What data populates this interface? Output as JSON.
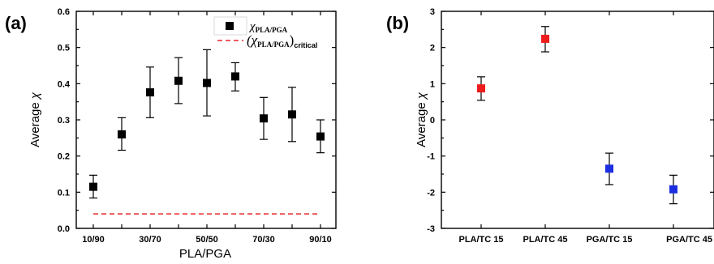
{
  "chart_data": [
    {
      "panel_label": "(a)",
      "type": "scatter",
      "xlabel": "PLA/PGA",
      "ylabel_text": "Average",
      "ylabel_symbol": "χ",
      "ylim": [
        0,
        0.6
      ],
      "yticks": [
        "0.0",
        "0.1",
        "0.2",
        "0.3",
        "0.4",
        "0.5",
        "0.6"
      ],
      "xticks": [
        "10/90",
        "30/70",
        "50/50",
        "70/30",
        "90/10"
      ],
      "grid": false,
      "legend": {
        "placement": "top-right",
        "series_symbol": "χ",
        "series_sub": "PLA/PGA",
        "critical_prefix": "(χ",
        "critical_sub": "PLA/PGA",
        "critical_suffix": ")",
        "critical_label": "critical"
      },
      "series": [
        {
          "marker": "square",
          "color": "#000000",
          "x": [
            10,
            20,
            30,
            40,
            50,
            60,
            70,
            80,
            90
          ],
          "y": [
            0.115,
            0.26,
            0.376,
            0.408,
            0.402,
            0.42,
            0.304,
            0.315,
            0.254
          ],
          "y_upper": [
            0.147,
            0.306,
            0.446,
            0.472,
            0.494,
            0.458,
            0.362,
            0.39,
            0.3
          ],
          "y_lower": [
            0.084,
            0.216,
            0.306,
            0.345,
            0.311,
            0.38,
            0.246,
            0.24,
            0.209
          ]
        }
      ],
      "critical_line": {
        "value": 0.04,
        "x_start": 10,
        "x_end": 90,
        "color": "#e8262b",
        "style": "dashed"
      }
    },
    {
      "panel_label": "(b)",
      "type": "scatter",
      "ylabel_text": "Average",
      "ylabel_symbol": "χ",
      "ylim": [
        -3,
        3
      ],
      "yticks": [
        "-3",
        "-2",
        "-1",
        "0",
        "1",
        "2",
        "3"
      ],
      "categories": [
        "PLA/TC 15",
        "PLA/TC 45",
        "PGA/TC 15",
        "PGA/TC 45"
      ],
      "grid": false,
      "points": [
        {
          "category": "PLA/TC 15",
          "y": 0.87,
          "y_upper": 1.19,
          "y_lower": 0.54,
          "color": "#ee1c1c"
        },
        {
          "category": "PLA/TC 45",
          "y": 2.24,
          "y_upper": 2.58,
          "y_lower": 1.88,
          "color": "#ee1c1c"
        },
        {
          "category": "PGA/TC 15",
          "y": -1.35,
          "y_upper": -0.92,
          "y_lower": -1.79,
          "color": "#1c2ee0"
        },
        {
          "category": "PGA/TC 45",
          "y": -1.92,
          "y_upper": -1.53,
          "y_lower": -2.32,
          "color": "#1c2ee0"
        }
      ]
    }
  ]
}
